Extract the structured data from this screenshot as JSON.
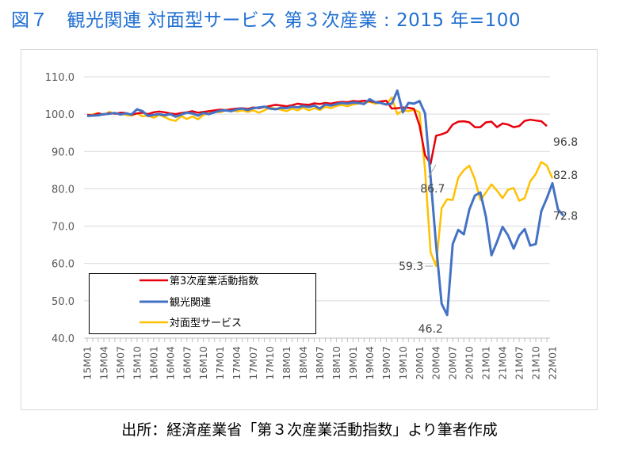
{
  "title": "図７　観光関連 対面型サービス 第３次産業 : 2015 年=100",
  "source": "出所：経済産業省「第３次産業活動指数」より筆者作成",
  "chart_data": {
    "type": "line",
    "ylim": [
      40,
      110
    ],
    "yticks": [
      "110.0",
      "100.0",
      "90.0",
      "80.0",
      "70.0",
      "60.0",
      "50.0",
      "40.0"
    ],
    "xtick_labels": [
      "15M01",
      "15M04",
      "15M07",
      "15M10",
      "16M01",
      "16M04",
      "16M07",
      "16M10",
      "17M01",
      "17M04",
      "17M07",
      "17M10",
      "18M01",
      "18M04",
      "18M07",
      "18M10",
      "19M01",
      "19M04",
      "19M07",
      "19M10",
      "20M01",
      "20M04",
      "20M07",
      "20M10",
      "21M01",
      "21M04",
      "21M07",
      "21M10",
      "22M01"
    ],
    "grid": true,
    "legend_position": "bottom-left",
    "series": [
      {
        "name": "第3次産業活動指数",
        "color": "#e8000b",
        "values": [
          99.8,
          99.7,
          100.2,
          99.9,
          100.3,
          100.1,
          100.4,
          100.3,
          99.8,
          100.2,
          100.4,
          100.0,
          100.5,
          100.7,
          100.5,
          100.2,
          100.0,
          100.3,
          100.5,
          100.8,
          100.4,
          100.6,
          100.8,
          101.0,
          101.2,
          101.1,
          101.3,
          101.5,
          101.6,
          101.4,
          101.8,
          101.6,
          101.9,
          102.2,
          102.5,
          102.3,
          102.1,
          102.4,
          102.8,
          102.6,
          102.5,
          102.9,
          102.7,
          103.0,
          102.8,
          103.1,
          103.3,
          103.2,
          103.5,
          103.4,
          103.6,
          103.5,
          103.2,
          103.4,
          103.6,
          101.5,
          101.6,
          101.8,
          101.7,
          101.4,
          97.0,
          89.0,
          86.7,
          94.2,
          94.6,
          95.2,
          97.2,
          98.0,
          98.1,
          97.8,
          96.5,
          96.5,
          97.8,
          98.0,
          96.5,
          97.5,
          97.2,
          96.5,
          96.8,
          98.2,
          98.5,
          98.3,
          98.1,
          96.8
        ]
      },
      {
        "name": "観光関連",
        "color": "#4472c4",
        "values": [
          99.5,
          99.6,
          99.7,
          100.0,
          100.1,
          100.3,
          99.9,
          100.2,
          99.9,
          101.3,
          100.8,
          99.5,
          99.8,
          100.0,
          99.7,
          100.0,
          99.3,
          99.9,
          100.4,
          100.2,
          99.6,
          100.3,
          100.0,
          100.5,
          100.9,
          101.0,
          100.8,
          101.3,
          101.5,
          101.1,
          101.6,
          101.8,
          102.0,
          101.5,
          101.3,
          101.7,
          101.6,
          102.0,
          101.8,
          102.2,
          101.9,
          102.3,
          101.5,
          102.6,
          102.3,
          102.7,
          103.0,
          102.8,
          103.1,
          103.0,
          102.7,
          104.0,
          103.2,
          103.0,
          102.6,
          102.8,
          106.3,
          100.5,
          103.0,
          102.8,
          103.5,
          100.2,
          83.0,
          65.0,
          49.2,
          46.2,
          65.2,
          69.0,
          67.8,
          74.5,
          78.2,
          79.0,
          72.5,
          62.2,
          65.8,
          69.8,
          67.5,
          64.0,
          67.5,
          69.2,
          64.8,
          65.2,
          74.0,
          77.5,
          81.5,
          74.5,
          72.8
        ]
      },
      {
        "name": "対面型サービス",
        "color": "#ffc000",
        "values": [
          99.8,
          99.9,
          100.3,
          99.8,
          100.6,
          100.1,
          100.3,
          99.8,
          99.6,
          100.2,
          99.4,
          99.6,
          99.0,
          99.8,
          99.2,
          98.5,
          98.2,
          99.5,
          98.7,
          99.4,
          98.6,
          99.8,
          100.2,
          100.8,
          100.5,
          101.0,
          101.2,
          100.7,
          101.0,
          100.6,
          101.0,
          100.4,
          101.0,
          101.8,
          101.5,
          101.2,
          100.8,
          101.5,
          101.0,
          101.8,
          101.0,
          101.6,
          101.1,
          102.0,
          101.6,
          102.2,
          102.5,
          102.1,
          102.6,
          102.8,
          103.0,
          103.3,
          102.8,
          103.0,
          102.5,
          104.5,
          100.0,
          101.0,
          100.8,
          101.2,
          100.5,
          85.0,
          63.0,
          59.3,
          74.8,
          77.2,
          77.0,
          83.0,
          85.0,
          86.2,
          82.5,
          77.0,
          79.0,
          81.2,
          79.5,
          77.5,
          79.8,
          80.2,
          76.8,
          77.5,
          82.0,
          84.0,
          87.2,
          86.2,
          82.8
        ]
      }
    ],
    "annotations": [
      "96.8",
      "86.7",
      "82.8",
      "72.8",
      "59.3",
      "46.2"
    ]
  }
}
